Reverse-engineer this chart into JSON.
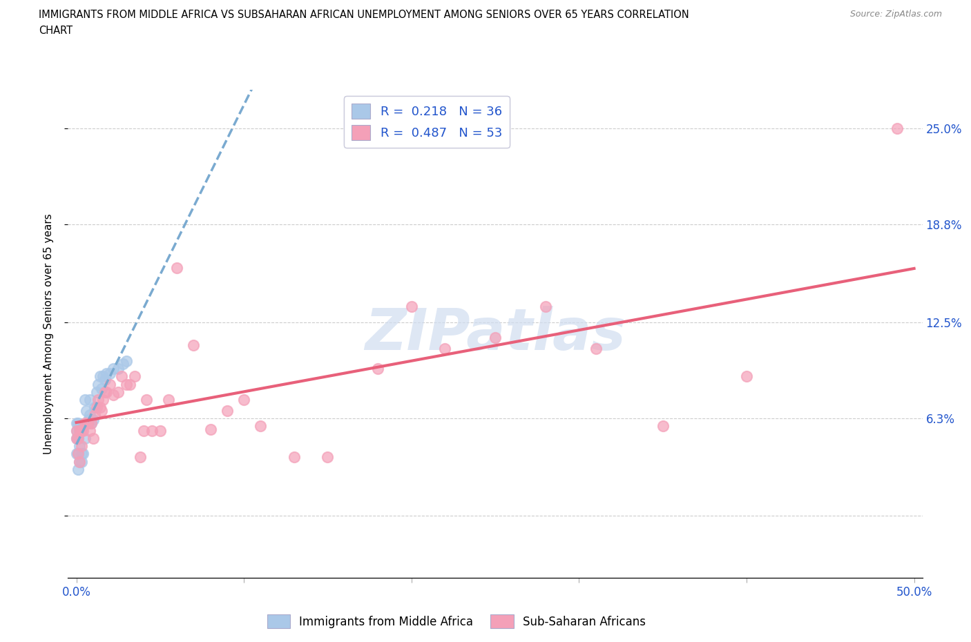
{
  "title_line1": "IMMIGRANTS FROM MIDDLE AFRICA VS SUBSAHARAN AFRICAN UNEMPLOYMENT AMONG SENIORS OVER 65 YEARS CORRELATION",
  "title_line2": "CHART",
  "source": "Source: ZipAtlas.com",
  "ylabel": "Unemployment Among Seniors over 65 years",
  "xlim": [
    -0.005,
    0.505
  ],
  "ylim": [
    -0.04,
    0.275
  ],
  "ytick_vals": [
    0.0,
    0.063,
    0.125,
    0.188,
    0.25
  ],
  "ytick_labels": [
    "",
    "6.3%",
    "12.5%",
    "18.8%",
    "25.0%"
  ],
  "xtick_vals": [
    0.0,
    0.1,
    0.2,
    0.3,
    0.4,
    0.5
  ],
  "xtick_labels": [
    "0.0%",
    "",
    "",
    "",
    "",
    "50.0%"
  ],
  "R_blue": 0.218,
  "N_blue": 36,
  "R_pink": 0.487,
  "N_pink": 53,
  "blue_dot_color": "#aac8e8",
  "pink_dot_color": "#f4a0b8",
  "blue_line_color": "#7aaad0",
  "pink_line_color": "#e8607a",
  "legend_text_color": "#2255cc",
  "watermark_color": "#d0ddf0",
  "blue_scatter_x": [
    0.0,
    0.0,
    0.0,
    0.0,
    0.001,
    0.001,
    0.001,
    0.001,
    0.002,
    0.002,
    0.002,
    0.003,
    0.003,
    0.004,
    0.004,
    0.005,
    0.005,
    0.006,
    0.007,
    0.008,
    0.008,
    0.009,
    0.01,
    0.011,
    0.012,
    0.013,
    0.014,
    0.015,
    0.016,
    0.017,
    0.018,
    0.02,
    0.022,
    0.025,
    0.028,
    0.03
  ],
  "blue_scatter_y": [
    0.04,
    0.05,
    0.055,
    0.06,
    0.03,
    0.04,
    0.05,
    0.06,
    0.035,
    0.045,
    0.055,
    0.035,
    0.04,
    0.04,
    0.058,
    0.05,
    0.075,
    0.068,
    0.062,
    0.065,
    0.075,
    0.06,
    0.062,
    0.07,
    0.08,
    0.085,
    0.09,
    0.082,
    0.09,
    0.088,
    0.092,
    0.092,
    0.095,
    0.095,
    0.098,
    0.1
  ],
  "pink_scatter_x": [
    0.0,
    0.0,
    0.001,
    0.001,
    0.002,
    0.002,
    0.003,
    0.003,
    0.004,
    0.005,
    0.006,
    0.007,
    0.008,
    0.009,
    0.01,
    0.011,
    0.012,
    0.013,
    0.014,
    0.015,
    0.016,
    0.017,
    0.018,
    0.02,
    0.022,
    0.025,
    0.027,
    0.03,
    0.032,
    0.035,
    0.038,
    0.04,
    0.042,
    0.045,
    0.05,
    0.055,
    0.06,
    0.07,
    0.08,
    0.09,
    0.1,
    0.11,
    0.13,
    0.15,
    0.18,
    0.2,
    0.22,
    0.25,
    0.28,
    0.31,
    0.35,
    0.4,
    0.49
  ],
  "pink_scatter_y": [
    0.05,
    0.055,
    0.04,
    0.05,
    0.035,
    0.055,
    0.045,
    0.055,
    0.055,
    0.06,
    0.06,
    0.06,
    0.055,
    0.06,
    0.05,
    0.065,
    0.07,
    0.075,
    0.07,
    0.068,
    0.075,
    0.08,
    0.08,
    0.085,
    0.078,
    0.08,
    0.09,
    0.085,
    0.085,
    0.09,
    0.038,
    0.055,
    0.075,
    0.055,
    0.055,
    0.075,
    0.16,
    0.11,
    0.056,
    0.068,
    0.075,
    0.058,
    0.038,
    0.038,
    0.095,
    0.135,
    0.108,
    0.115,
    0.135,
    0.108,
    0.058,
    0.09,
    0.25
  ],
  "blue_trend_x_start": 0.0,
  "blue_trend_x_end": 0.5,
  "pink_trend_x_start": 0.0,
  "pink_trend_x_end": 0.5
}
